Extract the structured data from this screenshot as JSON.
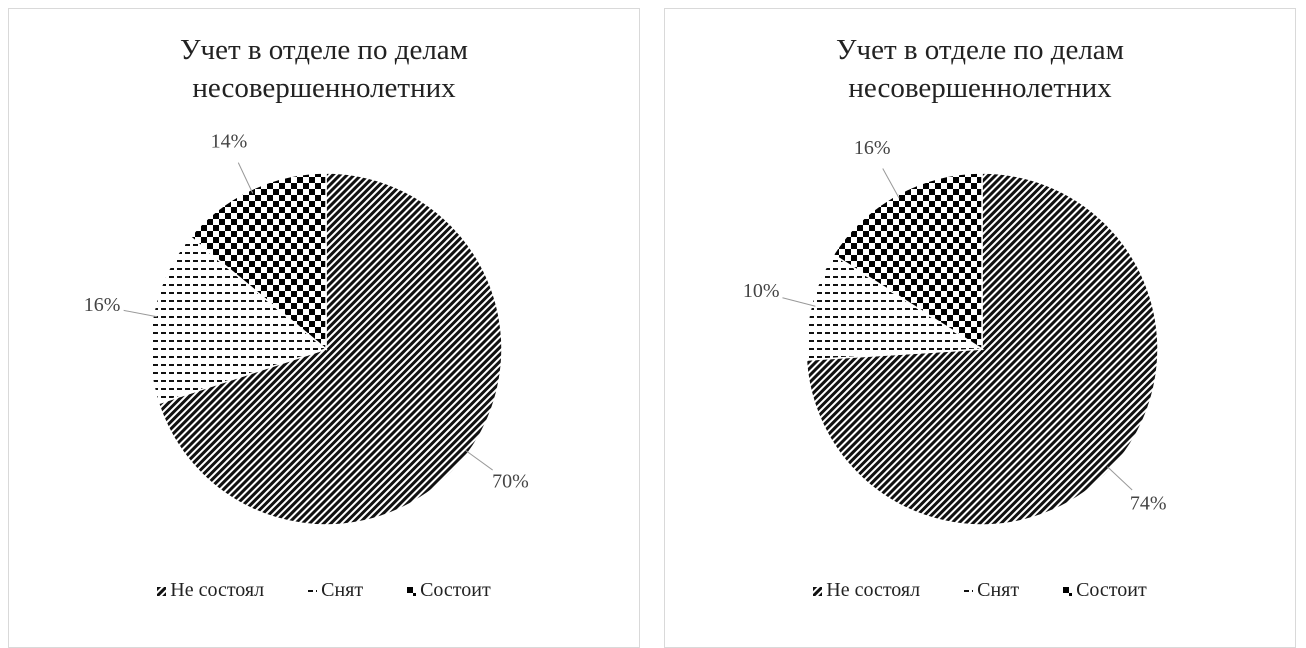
{
  "chart_data": [
    {
      "type": "pie",
      "title": "Учет в отделе по делам несовершеннолетних",
      "categories": [
        "Не состоял",
        "Снят",
        "Состоит"
      ],
      "values": [
        70,
        16,
        14
      ],
      "value_labels": [
        "70%",
        "16%",
        "14%"
      ]
    },
    {
      "type": "pie",
      "title": "Учет в отделе по делам несовершеннолетних",
      "categories": [
        "Не состоял",
        "Снят",
        "Состоит"
      ],
      "values": [
        74,
        10,
        16
      ],
      "value_labels": [
        "74%",
        "10%",
        "16%"
      ]
    }
  ]
}
